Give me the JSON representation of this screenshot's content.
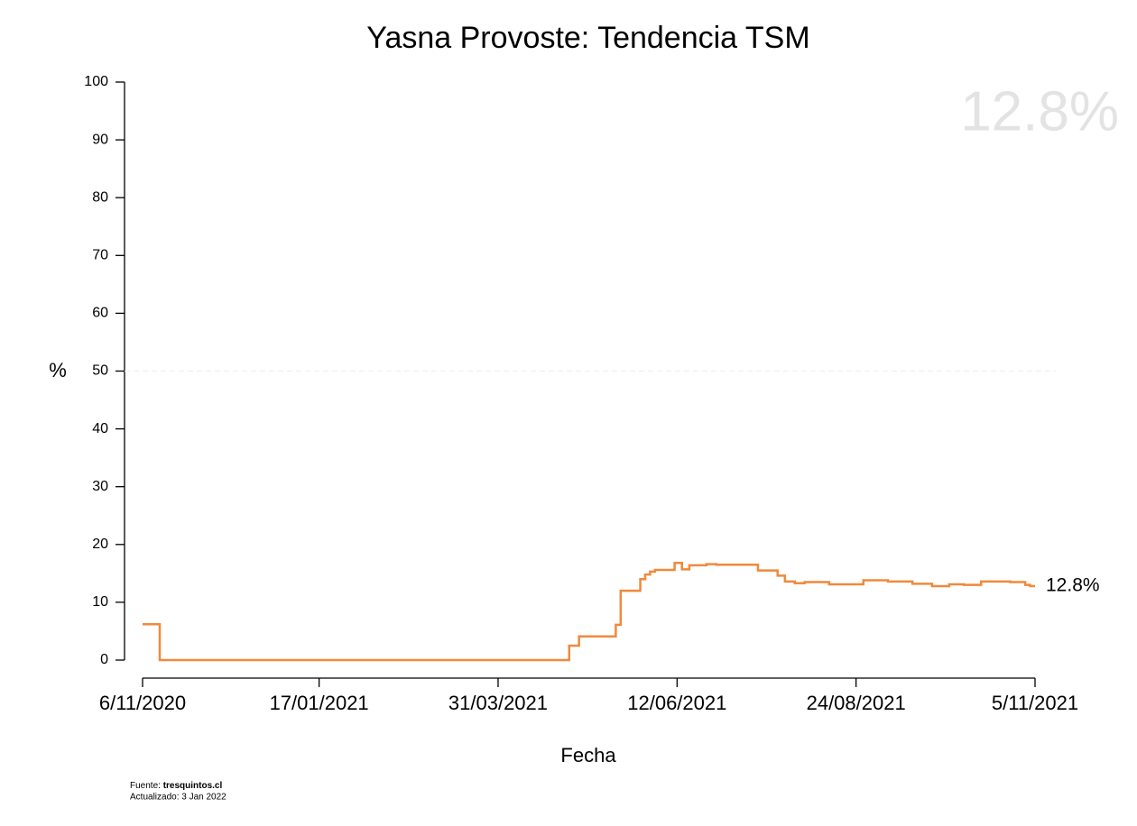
{
  "chart_data": {
    "type": "line",
    "step": "post",
    "title": "Yasna Provoste: Tendencia TSM",
    "x_label": "Fecha",
    "y_label": "%",
    "annotation": "12.8%",
    "source_prefix": "Fuente:",
    "source": "tresquintos.cl",
    "updated": "Actualizado: 3 Jan 2022",
    "x": [
      "2020-11-06",
      "2020-11-13",
      "2021-04-29",
      "2021-05-03",
      "2021-05-18",
      "2021-05-20",
      "2021-05-28",
      "2021-05-30",
      "2021-06-01",
      "2021-06-03",
      "2021-06-11",
      "2021-06-14",
      "2021-06-17",
      "2021-06-24",
      "2021-06-28",
      "2021-07-15",
      "2021-07-23",
      "2021-07-26",
      "2021-07-30",
      "2021-08-03",
      "2021-08-13",
      "2021-08-27",
      "2021-09-06",
      "2021-09-16",
      "2021-09-24",
      "2021-10-01",
      "2021-10-07",
      "2021-10-14",
      "2021-10-26",
      "2021-11-01",
      "2021-11-03",
      "2021-11-05"
    ],
    "series": [
      {
        "name": "Yasna Provoste",
        "color": "#ef8a3c",
        "values": [
          6.2,
          0,
          2.5,
          4.1,
          6.1,
          12.0,
          14.0,
          14.8,
          15.3,
          15.6,
          16.8,
          15.7,
          16.4,
          16.6,
          16.5,
          15.5,
          14.6,
          13.6,
          13.3,
          13.5,
          13.1,
          13.8,
          13.6,
          13.2,
          12.8,
          13.1,
          13.0,
          13.6,
          13.5,
          13.0,
          12.8,
          12.8
        ],
        "value_labels": [
          null,
          null,
          null,
          null,
          null,
          null,
          null,
          null,
          null,
          null,
          null,
          null,
          null,
          null,
          null,
          null,
          null,
          null,
          null,
          null,
          null,
          null,
          null,
          null,
          null,
          null,
          null,
          null,
          null,
          null,
          null,
          "12.8%"
        ]
      }
    ],
    "xlim": [
      "2020-11-06",
      "2021-11-05"
    ],
    "xticks": [
      {
        "value": "2020-11-06",
        "label": "6/11/2020"
      },
      {
        "value": "2021-01-17",
        "label": "17/01/2021"
      },
      {
        "value": "2021-03-31",
        "label": "31/03/2021"
      },
      {
        "value": "2021-06-12",
        "label": "12/06/2021"
      },
      {
        "value": "2021-08-24",
        "label": "24/08/2021"
      },
      {
        "value": "2021-11-05",
        "label": "5/11/2021"
      }
    ],
    "ylim": [
      0,
      100
    ],
    "yticks": [
      0,
      10,
      20,
      30,
      40,
      50,
      60,
      70,
      80,
      90,
      100
    ],
    "reference_line": 50
  }
}
